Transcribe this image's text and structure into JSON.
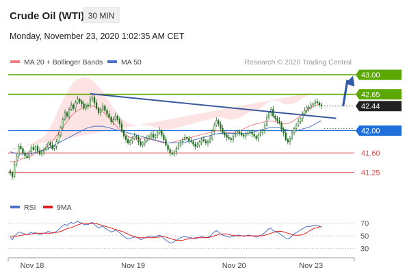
{
  "header": {
    "instrument": "Crude Oil (WTI)",
    "timeframe": "30 MIN",
    "datetime": "Monday, November 23, 2020 1:02:35 AM CET"
  },
  "legend": {
    "ma20_label": "MA 20 + Bollinger Bands",
    "ma50_label": "MA 50",
    "source": "Research © 2020 Trading Central",
    "rsi_label": "RSI",
    "rsi_ma_label": "9MA"
  },
  "colors": {
    "green": "#5aa800",
    "blue": "#1e6fd9",
    "red": "#e05050",
    "ma20": "#f08080",
    "band": "#fcd9d9",
    "ma50": "#4a72c8",
    "candle": "#1d6b1d",
    "arrow": "#2d5aa6",
    "trend": "#3c5aa0",
    "current": "#222222",
    "rsi": "#4a72c8",
    "rsi_ma": "#e02020"
  },
  "chart_data": {
    "type": "candlestick",
    "y_range": [
      41.05,
      43.05
    ],
    "x_tick_labels": [
      "Nov 18",
      "Nov 19",
      "Nov 20",
      "Nov 23"
    ],
    "x_tick_index": [
      0,
      48,
      96,
      144
    ],
    "levels": [
      {
        "value": 43.0,
        "label": "43.00",
        "style": "green-box",
        "role": "target"
      },
      {
        "value": 42.65,
        "label": "42.65",
        "style": "green-box",
        "role": "resistance"
      },
      {
        "value": 42.44,
        "label": "42.44",
        "style": "dark-box",
        "role": "last-price"
      },
      {
        "value": 42.0,
        "label": "42.00",
        "style": "blue-box",
        "role": "pivot"
      },
      {
        "value": 41.6,
        "label": "41.60",
        "style": "red-text",
        "role": "support"
      },
      {
        "value": 41.25,
        "label": "41.25",
        "style": "red-text",
        "role": "support"
      }
    ],
    "trendline": {
      "start": [
        38,
        42.66
      ],
      "end": [
        155,
        42.22
      ]
    },
    "arrow": {
      "start": [
        157,
        42.44
      ],
      "end": [
        173,
        42.98
      ]
    },
    "last_price": 42.44,
    "closes": [
      41.24,
      41.18,
      41.4,
      41.55,
      41.72,
      41.68,
      41.6,
      41.55,
      41.52,
      41.62,
      41.7,
      41.66,
      41.72,
      41.64,
      41.58,
      41.62,
      41.66,
      41.7,
      41.78,
      41.74,
      41.68,
      41.72,
      41.8,
      41.92,
      42.06,
      42.2,
      42.32,
      42.26,
      42.38,
      42.46,
      42.4,
      42.5,
      42.56,
      42.52,
      42.48,
      42.4,
      42.46,
      42.44,
      42.56,
      42.6,
      42.5,
      42.4,
      42.32,
      42.38,
      42.44,
      42.36,
      42.3,
      42.24,
      42.16,
      42.2,
      42.26,
      42.2,
      42.12,
      42.0,
      41.9,
      41.84,
      41.78,
      41.82,
      41.86,
      41.9,
      41.88,
      41.8,
      41.74,
      41.78,
      41.82,
      41.86,
      41.9,
      41.94,
      41.88,
      41.92,
      41.96,
      42.0,
      41.92,
      41.84,
      41.74,
      41.66,
      41.6,
      41.58,
      41.62,
      41.68,
      41.74,
      41.8,
      41.84,
      41.88,
      41.86,
      41.82,
      41.8,
      41.76,
      41.72,
      41.74,
      41.8,
      41.84,
      41.82,
      41.78,
      41.8,
      41.86,
      42.0,
      42.1,
      42.18,
      42.12,
      42.04,
      41.96,
      41.92,
      41.88,
      41.86,
      41.84,
      41.9,
      41.94,
      41.98,
      41.96,
      41.92,
      41.9,
      41.94,
      41.96,
      41.98,
      41.94,
      41.9,
      41.86,
      41.92,
      41.96,
      42.0,
      42.1,
      42.24,
      42.32,
      42.38,
      42.26,
      42.22,
      42.18,
      42.14,
      42.02,
      41.96,
      41.84,
      41.8,
      41.86,
      41.96,
      42.04,
      42.1,
      42.16,
      42.22,
      42.3,
      42.36,
      42.42,
      42.4,
      42.46,
      42.48,
      42.52,
      42.5,
      42.46,
      42.44
    ],
    "ma20": [
      41.45,
      41.44,
      41.44,
      41.45,
      41.47,
      41.49,
      41.5,
      41.51,
      41.52,
      41.53,
      41.55,
      41.57,
      41.59,
      41.61,
      41.63,
      41.65,
      41.67,
      41.7,
      41.73,
      41.77,
      41.81,
      41.86,
      41.91,
      41.96,
      42.01,
      42.06,
      42.11,
      42.16,
      42.21,
      42.26,
      42.3,
      42.33,
      42.36,
      42.38,
      42.4,
      42.42,
      42.43,
      42.44,
      42.44,
      42.44,
      42.43,
      42.41,
      42.39,
      42.37,
      42.34,
      42.3,
      42.26,
      42.22,
      42.18,
      42.14,
      42.1,
      42.06,
      42.02,
      41.98,
      41.95,
      41.92,
      41.9,
      41.88,
      41.87,
      41.86,
      41.86,
      41.86,
      41.86,
      41.86,
      41.86,
      41.86,
      41.85,
      41.84,
      41.83,
      41.82,
      41.81,
      41.8,
      41.79,
      41.78,
      41.78,
      41.78,
      41.78,
      41.79,
      41.8,
      41.81,
      41.82,
      41.83,
      41.84,
      41.85,
      41.86,
      41.87,
      41.88,
      41.89,
      41.9,
      41.91,
      41.92,
      41.93,
      41.94,
      41.95,
      41.96,
      41.97,
      41.98,
      41.99,
      42.0,
      42.0,
      42.0,
      41.99,
      41.98,
      41.97,
      41.96,
      41.96,
      41.96,
      41.97,
      41.98,
      41.99,
      42.01,
      42.03,
      42.05,
      42.07,
      42.09,
      42.1,
      42.11,
      42.12,
      42.13,
      42.14,
      42.15,
      42.16,
      42.17,
      42.17,
      42.17,
      42.17,
      42.16,
      42.15,
      42.14,
      42.13,
      42.12,
      42.12,
      42.13,
      42.14,
      42.16,
      42.18,
      42.21,
      42.24,
      42.27,
      42.3,
      42.33,
      42.36,
      42.39,
      42.41,
      42.43,
      42.45,
      42.46,
      42.47,
      42.48
    ],
    "band_width": [
      0.22,
      0.22,
      0.22,
      0.22,
      0.22,
      0.22,
      0.22,
      0.22,
      0.22,
      0.22,
      0.22,
      0.22,
      0.22,
      0.22,
      0.22,
      0.22,
      0.22,
      0.24,
      0.27,
      0.3,
      0.33,
      0.36,
      0.39,
      0.42,
      0.45,
      0.48,
      0.5,
      0.52,
      0.54,
      0.55,
      0.56,
      0.56,
      0.56,
      0.55,
      0.54,
      0.53,
      0.52,
      0.5,
      0.48,
      0.46,
      0.44,
      0.42,
      0.4,
      0.38,
      0.36,
      0.34,
      0.32,
      0.3,
      0.28,
      0.27,
      0.26,
      0.25,
      0.24,
      0.24,
      0.24,
      0.24,
      0.24,
      0.24,
      0.24,
      0.24,
      0.24,
      0.24,
      0.24,
      0.24,
      0.24,
      0.24,
      0.24,
      0.24,
      0.24,
      0.24,
      0.24,
      0.24,
      0.24,
      0.24,
      0.24,
      0.24,
      0.24,
      0.24,
      0.24,
      0.24,
      0.24,
      0.24,
      0.24,
      0.24,
      0.24,
      0.24,
      0.24,
      0.24,
      0.24,
      0.24,
      0.24,
      0.24,
      0.24,
      0.24,
      0.24,
      0.24,
      0.24,
      0.24,
      0.24,
      0.24,
      0.24,
      0.24,
      0.24,
      0.24,
      0.24,
      0.24,
      0.24,
      0.24,
      0.24,
      0.24,
      0.24,
      0.24,
      0.24,
      0.24,
      0.24,
      0.24,
      0.24,
      0.24,
      0.25,
      0.26,
      0.28,
      0.3,
      0.32,
      0.34,
      0.36,
      0.37,
      0.38,
      0.38,
      0.38,
      0.37,
      0.36,
      0.35,
      0.34,
      0.33,
      0.32,
      0.31,
      0.3,
      0.29,
      0.28,
      0.28,
      0.27,
      0.27,
      0.26,
      0.26,
      0.25,
      0.25,
      0.24
    ],
    "ma50": [
      41.62,
      41.61,
      41.6,
      41.59,
      41.58,
      41.58,
      41.58,
      41.58,
      41.58,
      41.58,
      41.59,
      41.6,
      41.61,
      41.62,
      41.63,
      41.64,
      41.65,
      41.66,
      41.68,
      41.7,
      41.72,
      41.74,
      41.76,
      41.78,
      41.8,
      41.82,
      41.84,
      41.86,
      41.88,
      41.9,
      41.92,
      41.94,
      41.96,
      41.98,
      42.0,
      42.02,
      42.04,
      42.05,
      42.06,
      42.07,
      42.08,
      42.08,
      42.08,
      42.08,
      42.08,
      42.07,
      42.06,
      42.05,
      42.04,
      42.03,
      42.02,
      42.01,
      42.0,
      41.99,
      41.98,
      41.97,
      41.96,
      41.95,
      41.94,
      41.93,
      41.92,
      41.91,
      41.9,
      41.89,
      41.88,
      41.87,
      41.86,
      41.85,
      41.84,
      41.83,
      41.82,
      41.81,
      41.8,
      41.79,
      41.78,
      41.78,
      41.78,
      41.78,
      41.78,
      41.78,
      41.78,
      41.78,
      41.78,
      41.79,
      41.8,
      41.81,
      41.82,
      41.83,
      41.84,
      41.85,
      41.86,
      41.87,
      41.88,
      41.89,
      41.9,
      41.91,
      41.92,
      41.93,
      41.94,
      41.95,
      41.95,
      41.95,
      41.95,
      41.95,
      41.95,
      41.95,
      41.95,
      41.95,
      41.95,
      41.95,
      41.95,
      41.95,
      41.95,
      41.95,
      41.96,
      41.97,
      41.98,
      41.99,
      42.0,
      42.01,
      42.02,
      42.03,
      42.04,
      42.05,
      42.06,
      42.06,
      42.06,
      42.06,
      42.05,
      42.04,
      42.03,
      42.02,
      42.01,
      42.0,
      42.0,
      42.0,
      42.0,
      42.01,
      42.02,
      42.03,
      42.04,
      42.05,
      42.06,
      42.08,
      42.1,
      42.12,
      42.14,
      42.16,
      42.18
    ],
    "rsi": {
      "y_range": [
        20,
        80
      ],
      "ticks": [
        70,
        50,
        30
      ],
      "values": [
        48,
        44,
        50,
        52,
        56,
        55,
        54,
        53,
        52,
        54,
        55,
        54,
        55,
        53,
        52,
        53,
        54,
        55,
        57,
        56,
        54,
        55,
        57,
        60,
        63,
        66,
        68,
        66,
        69,
        71,
        69,
        71,
        73,
        71,
        70,
        67,
        68,
        67,
        70,
        71,
        68,
        65,
        62,
        64,
        65,
        62,
        60,
        58,
        56,
        57,
        59,
        57,
        55,
        52,
        49,
        47,
        45,
        46,
        47,
        48,
        48,
        46,
        44,
        45,
        47,
        48,
        49,
        50,
        48,
        49,
        50,
        51,
        49,
        46,
        43,
        41,
        39,
        39,
        41,
        43,
        45,
        47,
        48,
        49,
        48,
        47,
        47,
        46,
        45,
        46,
        48,
        49,
        48,
        47,
        48,
        49,
        53,
        56,
        58,
        56,
        53,
        51,
        50,
        49,
        48,
        48,
        49,
        50,
        51,
        51,
        50,
        49,
        50,
        51,
        51,
        50,
        49,
        48,
        49,
        51,
        52,
        55,
        58,
        61,
        62,
        58,
        57,
        55,
        54,
        51,
        49,
        46,
        45,
        47,
        50,
        53,
        55,
        57,
        59,
        61,
        63,
        65,
        64,
        65,
        66,
        67,
        66,
        65,
        64
      ],
      "ma9": [
        50,
        49,
        49,
        49,
        50,
        51,
        51,
        52,
        52,
        52,
        53,
        53,
        54,
        54,
        54,
        54,
        54,
        54,
        54,
        54,
        55,
        55,
        55,
        56,
        57,
        58,
        60,
        61,
        62,
        63,
        64,
        66,
        67,
        68,
        69,
        69,
        70,
        69,
        69,
        69,
        69,
        69,
        68,
        67,
        66,
        65,
        64,
        63,
        62,
        61,
        60,
        59,
        58,
        57,
        56,
        54,
        53,
        51,
        50,
        49,
        48,
        47,
        47,
        47,
        47,
        47,
        47,
        47,
        47,
        47,
        48,
        48,
        49,
        49,
        48,
        47,
        46,
        45,
        44,
        43,
        43,
        43,
        43,
        44,
        45,
        45,
        46,
        46,
        47,
        47,
        47,
        47,
        47,
        47,
        47,
        48,
        49,
        50,
        51,
        52,
        53,
        53,
        53,
        53,
        52,
        51,
        51,
        50,
        50,
        50,
        50,
        50,
        50,
        50,
        50,
        50,
        50,
        50,
        50,
        50,
        50,
        51,
        52,
        53,
        54,
        55,
        56,
        57,
        57,
        57,
        56,
        55,
        54,
        53,
        52,
        51,
        51,
        51,
        51,
        52,
        53,
        55,
        57,
        59,
        61,
        62,
        63,
        64,
        64
      ]
    }
  }
}
